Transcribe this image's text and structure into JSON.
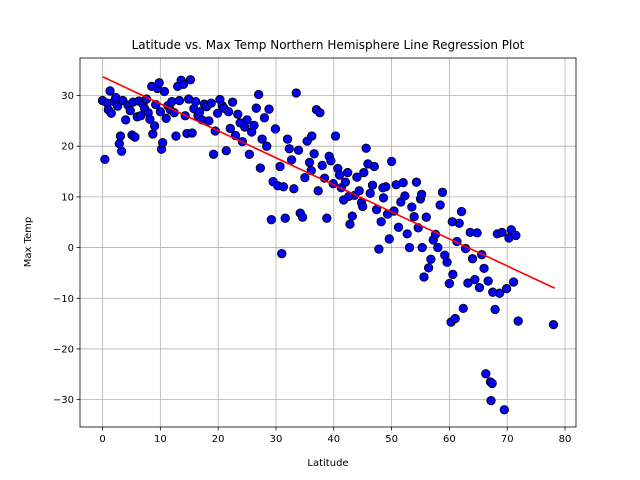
{
  "chart_data": {
    "type": "scatter",
    "title": "Latitude vs. Max Temp Northern Hemisphere Line Regression Plot",
    "xlabel": "Latitude",
    "ylabel": "Max Temp",
    "xlim": [
      -3.9,
      81.9
    ],
    "ylim": [
      -35.4,
      37.4
    ],
    "xticks": [
      0,
      10,
      20,
      30,
      40,
      50,
      60,
      70,
      80
    ],
    "yticks": [
      -30,
      -20,
      -10,
      0,
      10,
      20,
      30
    ],
    "grid": true,
    "marker_color": "#0000ff",
    "marker_edge": "#000000",
    "regression_color": "#ff0000",
    "regression_line": {
      "x": [
        0,
        78.2
      ],
      "y": [
        33.7,
        -8.0
      ]
    },
    "series": [
      {
        "points": [
          [
            0.0,
            29.0
          ],
          [
            0.4,
            17.4
          ],
          [
            0.8,
            28.5
          ],
          [
            1.0,
            27.2
          ],
          [
            1.3,
            30.9
          ],
          [
            1.5,
            26.5
          ],
          [
            2.0,
            28.8
          ],
          [
            2.3,
            29.6
          ],
          [
            2.6,
            27.9
          ],
          [
            2.9,
            20.5
          ],
          [
            3.1,
            22.0
          ],
          [
            3.3,
            19.0
          ],
          [
            3.5,
            29.0
          ],
          [
            4.0,
            25.2
          ],
          [
            4.4,
            28.1
          ],
          [
            4.8,
            27.0
          ],
          [
            5.1,
            22.2
          ],
          [
            5.3,
            28.7
          ],
          [
            5.6,
            21.8
          ],
          [
            6.0,
            25.8
          ],
          [
            6.3,
            28.9
          ],
          [
            6.6,
            26.0
          ],
          [
            7.0,
            28.3
          ],
          [
            7.3,
            27.4
          ],
          [
            7.6,
            29.3
          ],
          [
            7.9,
            26.6
          ],
          [
            8.2,
            25.3
          ],
          [
            8.5,
            31.8
          ],
          [
            8.7,
            22.4
          ],
          [
            9.0,
            24.0
          ],
          [
            9.2,
            28.2
          ],
          [
            9.5,
            31.4
          ],
          [
            9.8,
            32.5
          ],
          [
            10.0,
            26.8
          ],
          [
            10.2,
            19.4
          ],
          [
            10.4,
            20.7
          ],
          [
            10.7,
            30.8
          ],
          [
            11.0,
            25.5
          ],
          [
            11.3,
            28.0
          ],
          [
            11.7,
            27.2
          ],
          [
            12.0,
            28.8
          ],
          [
            12.4,
            26.6
          ],
          [
            12.7,
            22.0
          ],
          [
            13.0,
            31.8
          ],
          [
            13.3,
            29.0
          ],
          [
            13.6,
            33.0
          ],
          [
            14.0,
            32.2
          ],
          [
            14.3,
            26.0
          ],
          [
            14.6,
            22.5
          ],
          [
            14.9,
            29.3
          ],
          [
            15.2,
            33.1
          ],
          [
            15.5,
            22.6
          ],
          [
            15.8,
            27.4
          ],
          [
            16.1,
            28.8
          ],
          [
            16.5,
            26.0
          ],
          [
            16.8,
            26.8
          ],
          [
            17.2,
            25.2
          ],
          [
            17.6,
            28.3
          ],
          [
            18.0,
            27.8
          ],
          [
            18.4,
            25.0
          ],
          [
            18.8,
            28.5
          ],
          [
            19.2,
            18.4
          ],
          [
            19.5,
            23.0
          ],
          [
            19.9,
            26.5
          ],
          [
            20.3,
            29.2
          ],
          [
            20.7,
            28.0
          ],
          [
            21.0,
            27.5
          ],
          [
            21.4,
            19.1
          ],
          [
            21.8,
            26.8
          ],
          [
            22.1,
            23.5
          ],
          [
            22.5,
            28.7
          ],
          [
            23.0,
            22.1
          ],
          [
            23.4,
            26.3
          ],
          [
            23.8,
            24.6
          ],
          [
            24.2,
            20.9
          ],
          [
            24.6,
            23.8
          ],
          [
            25.0,
            25.2
          ],
          [
            25.4,
            18.4
          ],
          [
            25.8,
            22.8
          ],
          [
            26.2,
            24.1
          ],
          [
            26.6,
            27.5
          ],
          [
            27.0,
            30.2
          ],
          [
            27.3,
            15.7
          ],
          [
            27.6,
            21.4
          ],
          [
            28.0,
            25.6
          ],
          [
            28.4,
            20.0
          ],
          [
            28.8,
            27.3
          ],
          [
            29.2,
            5.5
          ],
          [
            29.5,
            13.0
          ],
          [
            29.9,
            23.4
          ],
          [
            30.3,
            12.2
          ],
          [
            30.7,
            16.0
          ],
          [
            31.0,
            -1.2
          ],
          [
            31.3,
            12.0
          ],
          [
            31.6,
            5.8
          ],
          [
            32.0,
            21.4
          ],
          [
            32.3,
            19.5
          ],
          [
            32.7,
            17.3
          ],
          [
            33.1,
            11.6
          ],
          [
            33.5,
            30.5
          ],
          [
            33.9,
            19.2
          ],
          [
            34.2,
            6.8
          ],
          [
            34.6,
            6.0
          ],
          [
            35.0,
            13.8
          ],
          [
            35.4,
            21.0
          ],
          [
            35.8,
            16.8
          ],
          [
            36.2,
            22.0
          ],
          [
            36.6,
            18.5
          ],
          [
            37.0,
            27.2
          ],
          [
            37.3,
            11.2
          ],
          [
            37.6,
            26.6
          ],
          [
            38.0,
            16.2
          ],
          [
            38.4,
            13.7
          ],
          [
            38.8,
            5.8
          ],
          [
            39.2,
            18.0
          ],
          [
            39.5,
            17.1
          ],
          [
            39.9,
            12.6
          ],
          [
            40.3,
            22.0
          ],
          [
            40.7,
            15.6
          ],
          [
            41.0,
            14.3
          ],
          [
            41.3,
            11.8
          ],
          [
            41.7,
            9.4
          ],
          [
            42.0,
            12.9
          ],
          [
            42.4,
            14.8
          ],
          [
            42.8,
            4.6
          ],
          [
            43.2,
            6.2
          ],
          [
            43.6,
            10.3
          ],
          [
            44.0,
            13.9
          ],
          [
            44.4,
            11.2
          ],
          [
            44.8,
            8.9
          ],
          [
            45.2,
            14.8
          ],
          [
            45.6,
            19.6
          ],
          [
            45.9,
            16.5
          ],
          [
            46.3,
            10.7
          ],
          [
            46.7,
            12.3
          ],
          [
            47.0,
            16.0
          ],
          [
            47.4,
            7.5
          ],
          [
            47.8,
            -0.3
          ],
          [
            48.2,
            5.1
          ],
          [
            48.6,
            9.8
          ],
          [
            49.0,
            12.0
          ],
          [
            49.3,
            6.6
          ],
          [
            49.6,
            1.7
          ],
          [
            50.0,
            17.0
          ],
          [
            50.4,
            7.2
          ],
          [
            50.8,
            12.4
          ],
          [
            51.2,
            4.0
          ],
          [
            51.6,
            9.0
          ],
          [
            52.0,
            12.8
          ],
          [
            52.3,
            10.2
          ],
          [
            52.7,
            2.7
          ],
          [
            53.1,
            0.0
          ],
          [
            53.5,
            8.0
          ],
          [
            53.9,
            6.1
          ],
          [
            54.3,
            12.9
          ],
          [
            54.6,
            3.9
          ],
          [
            55.0,
            9.6
          ],
          [
            55.3,
            0.0
          ],
          [
            55.6,
            -5.8
          ],
          [
            56.0,
            6.0
          ],
          [
            56.4,
            -4.0
          ],
          [
            56.8,
            -2.3
          ],
          [
            57.2,
            1.5
          ],
          [
            57.6,
            2.6
          ],
          [
            58.0,
            0.0
          ],
          [
            58.4,
            8.4
          ],
          [
            58.8,
            10.9
          ],
          [
            59.2,
            -1.5
          ],
          [
            59.6,
            -2.9
          ],
          [
            60.0,
            -7.1
          ],
          [
            60.3,
            -14.7
          ],
          [
            60.6,
            -5.3
          ],
          [
            61.0,
            -14.0
          ],
          [
            61.3,
            1.2
          ],
          [
            61.7,
            4.8
          ],
          [
            62.1,
            7.1
          ],
          [
            62.4,
            -12.0
          ],
          [
            62.8,
            -0.2
          ],
          [
            63.2,
            -7.0
          ],
          [
            63.6,
            3.0
          ],
          [
            64.0,
            -2.2
          ],
          [
            64.4,
            -6.3
          ],
          [
            64.8,
            2.9
          ],
          [
            65.2,
            -7.9
          ],
          [
            65.6,
            -1.4
          ],
          [
            66.0,
            -4.1
          ],
          [
            66.3,
            -24.9
          ],
          [
            66.7,
            -6.6
          ],
          [
            67.1,
            -26.5
          ],
          [
            67.5,
            -8.8
          ],
          [
            67.9,
            -12.2
          ],
          [
            68.3,
            2.7
          ],
          [
            68.7,
            -9.0
          ],
          [
            69.1,
            3.0
          ],
          [
            69.5,
            -32.0
          ],
          [
            69.9,
            -8.1
          ],
          [
            70.3,
            1.9
          ],
          [
            70.7,
            3.5
          ],
          [
            71.1,
            -6.8
          ],
          [
            71.5,
            2.4
          ],
          [
            71.9,
            -14.5
          ],
          [
            78.0,
            -15.2
          ],
          [
            67.2,
            -30.2
          ],
          [
            67.4,
            -26.8
          ],
          [
            42.6,
            10.1
          ],
          [
            36.1,
            15.2
          ],
          [
            48.5,
            11.8
          ],
          [
            55.2,
            10.5
          ],
          [
            60.5,
            5.1
          ],
          [
            45.0,
            8.1
          ]
        ]
      }
    ]
  }
}
